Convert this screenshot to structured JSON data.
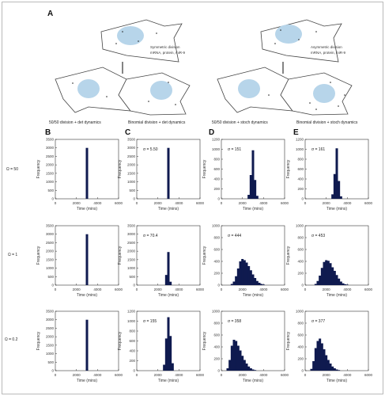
{
  "figure": {
    "panel_A_letter": "A",
    "symmetric_text": [
      "Symmetric division",
      "mRNA, protein, miR-9"
    ],
    "asymmetric_text": [
      "Asymmetric division",
      "mRNA, protein, miR-9"
    ],
    "column_letters": [
      "B",
      "C",
      "D",
      "E"
    ],
    "column_titles": [
      "50/50 division + det dynamics",
      "Binomial division + det dynamics",
      "50/50 division + stoch dynamics",
      "Binomial division + stoch dynamics"
    ],
    "row_labels": [
      "Ω = 50",
      "Ω = 1",
      "Ω = 0.2"
    ],
    "colors": {
      "bar": "#0f1a4f",
      "nucleus": "#b7d5ea",
      "cell_outline": "#444444"
    }
  },
  "chart_data": [
    {
      "type": "bar",
      "panel": "B1",
      "xlabel": "Time (mins)",
      "ylabel": "Frequency",
      "xlim": [
        0,
        6000
      ],
      "ylim": [
        0,
        3500
      ],
      "xticks": [
        0,
        2000,
        4000,
        6000
      ],
      "yticks": [
        0,
        500,
        1000,
        1500,
        2000,
        2500,
        3000,
        3500
      ],
      "sigma": "",
      "x": [
        3000
      ],
      "values": [
        3000
      ]
    },
    {
      "type": "bar",
      "panel": "C1",
      "xlabel": "Time (mins)",
      "ylabel": "Frequency",
      "xlim": [
        0,
        6000
      ],
      "ylim": [
        0,
        3500
      ],
      "xticks": [
        0,
        2000,
        4000,
        6000
      ],
      "yticks": [
        0,
        500,
        1000,
        1500,
        2000,
        2500,
        3000,
        3500
      ],
      "sigma": "σ = 5.50",
      "x": [
        3000
      ],
      "values": [
        3000
      ]
    },
    {
      "type": "bar",
      "panel": "D1",
      "xlabel": "Time (mins)",
      "ylabel": "Frequency",
      "xlim": [
        0,
        6000
      ],
      "ylim": [
        0,
        1200
      ],
      "xticks": [
        0,
        2000,
        4000,
        6000
      ],
      "yticks": [
        0,
        200,
        400,
        600,
        800,
        1000,
        1200
      ],
      "sigma": "σ = 151",
      "x": [
        2600,
        2800,
        3000,
        3200,
        3400
      ],
      "values": [
        80,
        480,
        980,
        380,
        60
      ]
    },
    {
      "type": "bar",
      "panel": "E1",
      "xlabel": "Time (mins)",
      "ylabel": "Frequency",
      "xlim": [
        0,
        6000
      ],
      "ylim": [
        0,
        1200
      ],
      "xticks": [
        0,
        2000,
        4000,
        6000
      ],
      "yticks": [
        0,
        200,
        400,
        600,
        800,
        1000,
        1200
      ],
      "sigma": "σ = 161",
      "x": [
        2600,
        2800,
        3000,
        3200,
        3400
      ],
      "values": [
        90,
        500,
        1020,
        360,
        50
      ]
    },
    {
      "type": "bar",
      "panel": "B2",
      "xlabel": "Time (mins)",
      "ylabel": "Frequency",
      "xlim": [
        0,
        6000
      ],
      "ylim": [
        0,
        3500
      ],
      "xticks": [
        0,
        2000,
        4000,
        6000
      ],
      "yticks": [
        0,
        500,
        1000,
        1500,
        2000,
        2500,
        3000,
        3500
      ],
      "sigma": "",
      "x": [
        3000
      ],
      "values": [
        3000
      ]
    },
    {
      "type": "bar",
      "panel": "C2",
      "xlabel": "Time (mins)",
      "ylabel": "Frequency",
      "xlim": [
        0,
        6000
      ],
      "ylim": [
        0,
        3500
      ],
      "xticks": [
        0,
        2000,
        4000,
        6000
      ],
      "yticks": [
        0,
        500,
        1000,
        1500,
        2000,
        2500,
        3000,
        3500
      ],
      "sigma": "σ = 70.4",
      "x": [
        2800,
        3000,
        3200
      ],
      "values": [
        600,
        1950,
        200
      ]
    },
    {
      "type": "bar",
      "panel": "D2",
      "xlabel": "Time (mins)",
      "ylabel": "Frequency",
      "xlim": [
        0,
        6000
      ],
      "ylim": [
        0,
        1000
      ],
      "xticks": [
        0,
        2000,
        4000,
        6000
      ],
      "yticks": [
        0,
        200,
        400,
        600,
        800,
        1000
      ],
      "sigma": "σ = 444",
      "x": [
        1000,
        1200,
        1400,
        1600,
        1800,
        2000,
        2200,
        2400,
        2600,
        2800,
        3000,
        3200,
        3400,
        3600,
        3800,
        4000
      ],
      "values": [
        20,
        60,
        150,
        280,
        400,
        440,
        420,
        380,
        320,
        250,
        180,
        120,
        70,
        40,
        20,
        10
      ]
    },
    {
      "type": "bar",
      "panel": "E2",
      "xlabel": "Time (mins)",
      "ylabel": "Frequency",
      "xlim": [
        0,
        6000
      ],
      "ylim": [
        0,
        1000
      ],
      "xticks": [
        0,
        2000,
        4000,
        6000
      ],
      "yticks": [
        0,
        200,
        400,
        600,
        800,
        1000
      ],
      "sigma": "σ = 453",
      "x": [
        1000,
        1200,
        1400,
        1600,
        1800,
        2000,
        2200,
        2400,
        2600,
        2800,
        3000,
        3200,
        3400,
        3600,
        3800,
        4000
      ],
      "values": [
        20,
        70,
        160,
        290,
        390,
        420,
        410,
        370,
        300,
        240,
        170,
        110,
        60,
        30,
        15,
        8
      ]
    },
    {
      "type": "bar",
      "panel": "B3",
      "xlabel": "Time (mins)",
      "ylabel": "Frequency",
      "xlim": [
        0,
        6000
      ],
      "ylim": [
        0,
        3500
      ],
      "xticks": [
        0,
        2000,
        4000,
        6000
      ],
      "yticks": [
        0,
        500,
        1000,
        1500,
        2000,
        2500,
        3000,
        3500
      ],
      "sigma": "",
      "x": [
        3000
      ],
      "values": [
        3000
      ]
    },
    {
      "type": "bar",
      "panel": "C3",
      "xlabel": "Time (mins)",
      "ylabel": "Frequency",
      "xlim": [
        0,
        6000
      ],
      "ylim": [
        0,
        1200
      ],
      "xticks": [
        0,
        2000,
        4000,
        6000
      ],
      "yticks": [
        0,
        200,
        400,
        600,
        800,
        1000,
        1200
      ],
      "sigma": "σ = 155",
      "x": [
        2600,
        2800,
        3000,
        3200,
        3400
      ],
      "values": [
        120,
        650,
        1080,
        700,
        150
      ]
    },
    {
      "type": "bar",
      "panel": "D3",
      "xlabel": "Time (mins)",
      "ylabel": "Frequency",
      "xlim": [
        0,
        6000
      ],
      "ylim": [
        0,
        1000
      ],
      "xticks": [
        0,
        2000,
        4000,
        6000
      ],
      "yticks": [
        0,
        200,
        400,
        600,
        800,
        1000
      ],
      "sigma": "σ = 358",
      "x": [
        600,
        800,
        1000,
        1200,
        1400,
        1600,
        1800,
        2000,
        2200,
        2400,
        2600,
        2800,
        3000,
        3200
      ],
      "values": [
        40,
        180,
        420,
        520,
        500,
        420,
        340,
        250,
        180,
        120,
        70,
        40,
        20,
        10
      ]
    },
    {
      "type": "bar",
      "panel": "E3",
      "xlabel": "Time (mins)",
      "ylabel": "Frequency",
      "xlim": [
        0,
        6000
      ],
      "ylim": [
        0,
        1000
      ],
      "xticks": [
        0,
        2000,
        4000,
        6000
      ],
      "yticks": [
        0,
        200,
        400,
        600,
        800,
        1000
      ],
      "sigma": "σ = 377",
      "x": [
        600,
        800,
        1000,
        1200,
        1400,
        1600,
        1800,
        2000,
        2200,
        2400,
        2600,
        2800,
        3000,
        3200
      ],
      "values": [
        30,
        160,
        380,
        500,
        540,
        460,
        360,
        260,
        180,
        120,
        70,
        40,
        20,
        10
      ]
    }
  ]
}
